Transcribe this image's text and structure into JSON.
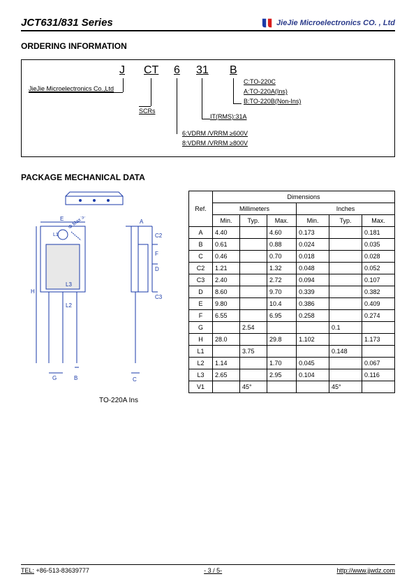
{
  "header": {
    "series_title": "JCT631/831 Series",
    "company": "JieJie Microelectronics CO. , Ltd",
    "logo_colors": {
      "left": "#1a3aa8",
      "right": "#d81e1e"
    }
  },
  "ordering": {
    "title": "ORDERING INFORMATION",
    "letters": {
      "J": "J",
      "CT": "CT",
      "six": "6",
      "thirtyone": "31",
      "B": "B"
    },
    "company_label": "JieJie Microelectronics Co.,Ltd",
    "scrs": "SCRs",
    "itrms": "IT(RMS):31A",
    "c_line": "C:TO-220C",
    "a_line": "A:TO-220A(Ins)",
    "b_line": "B:TO-220B(Non-Ins)",
    "v6": "6:VDRM /VRRM ≥600V",
    "v8": "8:VDRM /VRRM ≥800V"
  },
  "package": {
    "title": "PACKAGE MECHANICAL DATA",
    "to_label": "TO-220A Ins",
    "max_label": "Φ Max 3.8mm",
    "diagram_color": "#1a3aa8",
    "labels": {
      "A": "A",
      "B": "B",
      "C": "C",
      "C2": "C2",
      "C3": "C3",
      "D": "D",
      "E": "E",
      "F": "F",
      "G": "G",
      "H": "H",
      "L1": "L1",
      "L2": "L2",
      "L3": "L3"
    }
  },
  "dim_table": {
    "header_dim": "Dimensions",
    "header_ref": "Ref.",
    "header_mm": "Millimeters",
    "header_in": "Inches",
    "header_min": "Min.",
    "header_typ": "Typ.",
    "header_max": "Max.",
    "rows": [
      {
        "ref": "A",
        "mmMin": "4.40",
        "mmTyp": "",
        "mmMax": "4.60",
        "inMin": "0.173",
        "inTyp": "",
        "inMax": "0.181"
      },
      {
        "ref": "B",
        "mmMin": "0.61",
        "mmTyp": "",
        "mmMax": "0.88",
        "inMin": "0.024",
        "inTyp": "",
        "inMax": "0.035"
      },
      {
        "ref": "C",
        "mmMin": "0.46",
        "mmTyp": "",
        "mmMax": "0.70",
        "inMin": "0.018",
        "inTyp": "",
        "inMax": "0.028"
      },
      {
        "ref": "C2",
        "mmMin": "1.21",
        "mmTyp": "",
        "mmMax": "1.32",
        "inMin": "0.048",
        "inTyp": "",
        "inMax": "0.052"
      },
      {
        "ref": "C3",
        "mmMin": "2.40",
        "mmTyp": "",
        "mmMax": "2.72",
        "inMin": "0.094",
        "inTyp": "",
        "inMax": "0.107"
      },
      {
        "ref": "D",
        "mmMin": "8.60",
        "mmTyp": "",
        "mmMax": "9.70",
        "inMin": "0.339",
        "inTyp": "",
        "inMax": "0.382"
      },
      {
        "ref": "E",
        "mmMin": "9.80",
        "mmTyp": "",
        "mmMax": "10.4",
        "inMin": "0.386",
        "inTyp": "",
        "inMax": "0.409"
      },
      {
        "ref": "F",
        "mmMin": "6.55",
        "mmTyp": "",
        "mmMax": "6.95",
        "inMin": "0.258",
        "inTyp": "",
        "inMax": "0.274"
      },
      {
        "ref": "G",
        "mmMin": "",
        "mmTyp": "2.54",
        "mmMax": "",
        "inMin": "",
        "inTyp": "0.1",
        "inMax": ""
      },
      {
        "ref": "H",
        "mmMin": "28.0",
        "mmTyp": "",
        "mmMax": "29.8",
        "inMin": "1.102",
        "inTyp": "",
        "inMax": "1.173"
      },
      {
        "ref": "L1",
        "mmMin": "",
        "mmTyp": "3.75",
        "mmMax": "",
        "inMin": "",
        "inTyp": "0.148",
        "inMax": ""
      },
      {
        "ref": "L2",
        "mmMin": "1.14",
        "mmTyp": "",
        "mmMax": "1.70",
        "inMin": "0.045",
        "inTyp": "",
        "inMax": "0.067"
      },
      {
        "ref": "L3",
        "mmMin": "2.65",
        "mmTyp": "",
        "mmMax": "2.95",
        "inMin": "0.104",
        "inTyp": "",
        "inMax": "0.116"
      },
      {
        "ref": "V1",
        "mmMin": "",
        "mmTyp": "45°",
        "mmMax": "",
        "inMin": "",
        "inTyp": "45°",
        "inMax": ""
      }
    ]
  },
  "footer": {
    "tel_label": "TEL:",
    "tel": "+86-513-83639777",
    "page": "- 3 / 5-",
    "url": "http://www.jjwdz.com"
  }
}
